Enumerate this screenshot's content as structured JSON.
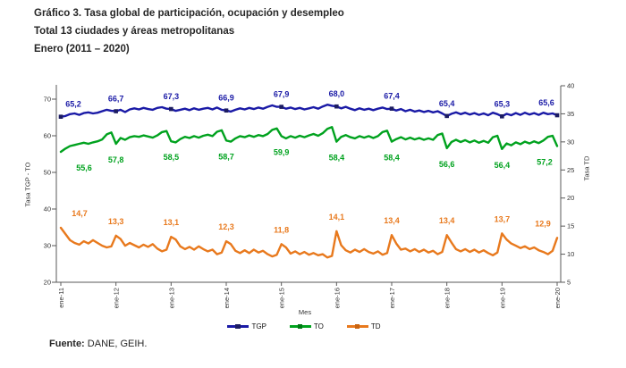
{
  "title": {
    "line1": "Gráfico 3. Tasa global de participación, ocupación y desempleo",
    "line2": "Total 13 ciudades y áreas metropolitanas",
    "line3": "Enero (2011 – 2020)"
  },
  "footer": {
    "bold": "Fuente:",
    "rest": " DANE, GEIH."
  },
  "chart_data": {
    "type": "line",
    "xlabel": "Mes",
    "x_tick_labels": [
      "ene-11",
      "ene-12",
      "ene-13",
      "ene-14",
      "ene-15",
      "ene-16",
      "ene-17",
      "ene-18",
      "ene-19",
      "ene-20"
    ],
    "axes": {
      "left": {
        "label": "Tasa TGP - TO",
        "min": 20,
        "max": 70,
        "step": 10
      },
      "right": {
        "label": "Tasa TD",
        "min": 5,
        "max": 40,
        "step": 5
      }
    },
    "legend_position": "bottom",
    "grid": false,
    "series": [
      {
        "name": "TGP",
        "axis": "left",
        "color": "#1a1aa6",
        "marker_color": "#1c1c62",
        "january_labels": [
          "65,2",
          "66,7",
          "67,3",
          "66,9",
          "67,9",
          "68,0",
          "67,4",
          "65,4",
          "65,3",
          "65,6"
        ],
        "values": [
          65.2,
          65.4,
          65.9,
          66.1,
          65.7,
          66.2,
          66.4,
          66.1,
          66.3,
          66.7,
          67.1,
          66.8,
          66.7,
          67.1,
          66.5,
          67.2,
          67.5,
          67.2,
          67.6,
          67.3,
          67.1,
          67.6,
          67.8,
          67.4,
          67.3,
          66.8,
          67.1,
          67.4,
          67.0,
          67.5,
          67.1,
          67.4,
          67.6,
          67.2,
          67.7,
          67.1,
          66.9,
          66.6,
          67.1,
          67.5,
          67.2,
          67.6,
          67.3,
          67.7,
          67.4,
          67.9,
          68.3,
          67.9,
          67.9,
          67.4,
          67.7,
          67.3,
          67.6,
          67.2,
          67.5,
          67.8,
          67.4,
          68.0,
          68.5,
          68.2,
          68.0,
          67.5,
          67.9,
          67.4,
          67.0,
          67.5,
          67.1,
          67.4,
          67.0,
          67.4,
          67.7,
          67.3,
          67.4,
          66.9,
          67.3,
          66.7,
          67.1,
          66.6,
          66.9,
          66.5,
          66.8,
          66.4,
          66.7,
          66.1,
          65.4,
          66.0,
          66.4,
          65.9,
          66.3,
          65.8,
          66.2,
          65.7,
          66.1,
          65.6,
          66.3,
          65.9,
          65.3,
          66.0,
          65.6,
          66.2,
          65.7,
          66.3,
          65.8,
          66.2,
          65.7,
          66.3,
          65.9,
          66.1,
          65.6
        ]
      },
      {
        "name": "TO",
        "axis": "left",
        "color": "#00a21e",
        "marker_color": "#007a14",
        "january_labels": [
          "55,6",
          "57,8",
          "58,5",
          "58,7",
          "59,9",
          "58,4",
          "58,4",
          "56,6",
          "56,4",
          "57,2"
        ],
        "values": [
          55.6,
          56.5,
          57.2,
          57.5,
          57.8,
          58.1,
          57.8,
          58.2,
          58.5,
          59.0,
          60.4,
          60.9,
          57.8,
          59.4,
          58.9,
          59.6,
          59.9,
          59.7,
          60.1,
          59.8,
          59.5,
          60.1,
          61.0,
          61.3,
          58.5,
          58.2,
          59.1,
          59.7,
          59.4,
          59.9,
          59.5,
          60.0,
          60.3,
          59.9,
          61.1,
          61.5,
          58.7,
          58.4,
          59.3,
          59.9,
          59.6,
          60.1,
          59.7,
          60.2,
          59.9,
          60.5,
          61.6,
          62.0,
          59.9,
          59.3,
          59.9,
          59.5,
          60.0,
          59.6,
          60.1,
          60.5,
          60.0,
          60.7,
          61.9,
          62.4,
          58.4,
          59.7,
          60.2,
          59.6,
          59.3,
          59.9,
          59.5,
          59.9,
          59.4,
          59.9,
          61.0,
          61.4,
          58.4,
          59.1,
          59.6,
          59.0,
          59.5,
          59.0,
          59.4,
          58.9,
          59.3,
          58.9,
          60.2,
          60.6,
          56.6,
          58.3,
          58.9,
          58.3,
          58.8,
          58.2,
          58.7,
          58.1,
          58.6,
          58.1,
          59.6,
          60.0,
          56.4,
          57.9,
          57.4,
          58.2,
          57.7,
          58.4,
          57.9,
          58.5,
          58.0,
          58.7,
          59.7,
          60.0,
          57.2
        ]
      },
      {
        "name": "TD",
        "axis": "right",
        "color": "#e8791d",
        "marker_color": "#c96410",
        "january_labels": [
          "14,7",
          "13,3",
          "13,1",
          "12,3",
          "11,8",
          "14,1",
          "13,4",
          "13,4",
          "13,7",
          "12,9"
        ],
        "values": [
          14.7,
          13.6,
          12.5,
          12.0,
          11.7,
          12.3,
          11.9,
          12.5,
          12.0,
          11.5,
          11.2,
          11.4,
          13.3,
          12.7,
          11.5,
          12.0,
          11.6,
          11.2,
          11.7,
          11.3,
          11.8,
          11.0,
          10.5,
          10.8,
          13.1,
          12.6,
          11.4,
          10.9,
          11.3,
          10.8,
          11.4,
          10.9,
          10.5,
          10.8,
          10.0,
          10.3,
          12.3,
          11.8,
          10.6,
          10.2,
          10.7,
          10.2,
          10.8,
          10.3,
          10.6,
          10.0,
          9.6,
          9.9,
          11.8,
          11.2,
          10.1,
          10.5,
          10.0,
          10.4,
          9.9,
          10.2,
          9.8,
          10.0,
          9.4,
          9.7,
          14.1,
          11.6,
          10.7,
          10.3,
          10.8,
          10.4,
          10.9,
          10.4,
          10.1,
          10.5,
          9.9,
          10.2,
          13.4,
          11.9,
          10.8,
          11.0,
          10.5,
          10.9,
          10.4,
          10.8,
          10.3,
          10.6,
          10.0,
          10.4,
          13.4,
          12.1,
          10.9,
          10.5,
          10.9,
          10.4,
          10.8,
          10.3,
          10.7,
          10.2,
          9.8,
          10.3,
          13.7,
          12.6,
          11.9,
          11.5,
          11.1,
          11.4,
          10.9,
          11.2,
          10.7,
          10.4,
          10.0,
          10.6,
          12.9
        ]
      }
    ]
  }
}
